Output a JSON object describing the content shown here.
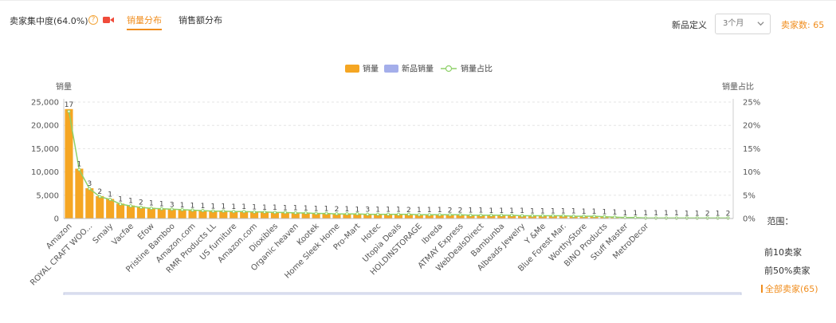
{
  "header": {
    "concentration_label": "卖家集中度(64.0%)",
    "help_icon": "question-circle-icon",
    "video_icon": "video-camera-icon",
    "tabs": [
      {
        "label": "销量分布",
        "active": true
      },
      {
        "label": "销售额分布",
        "active": false
      }
    ],
    "new_def_label": "新品定义",
    "select_value": "3个月",
    "seller_count": "卖家数: 65"
  },
  "colors": {
    "accent": "#f08d1d",
    "bar": "#f5a623",
    "new_bar": "#a4aeea",
    "line": "#8fd16a"
  },
  "range": {
    "title": "范围：",
    "options": [
      "前10卖家",
      "前50%卖家",
      "全部卖家(65)"
    ],
    "selected": "全部卖家(65)"
  },
  "chart_data": {
    "type": "bar",
    "legend": [
      "销量",
      "新品销量",
      "销量占比"
    ],
    "legend_position": "top-center",
    "ylabel_left": "销量",
    "ylabel_right": "销量占比",
    "y_ticks": [
      "0",
      "5,000",
      "10,000",
      "15,000",
      "20,000",
      "25,000"
    ],
    "y2_ticks": [
      "0%",
      "5%",
      "10%",
      "15%",
      "20%",
      "25%"
    ],
    "ylim": [
      0,
      25000
    ],
    "y2lim": [
      0,
      25
    ],
    "grid": true,
    "shown_x_labels": [
      "Amazon",
      "ROYAL CRAFT WOO...",
      "Smaly",
      "Vacfae",
      "Efow",
      "Pristine Bamboo",
      "Amazon.com",
      "RMR Products LL",
      "US furniture",
      "Amazon.com",
      "Dioxibles",
      "Organic heaven",
      "Kootek",
      "Home Sleek Home",
      "Pro-Mart",
      "Hotec",
      "Utopia Deals",
      "HOLDINSTORAGE",
      "Ibreda",
      "ATMAY Express",
      "WebDealsDirect",
      "Bambunba",
      "Albeads Jewelry",
      "Y &Me",
      "Blue Forest Mar.",
      "WorthyStore",
      "BINO Products",
      "Stuff Master",
      "MetroDecor"
    ],
    "label_every": 2,
    "values": [
      23500,
      10700,
      6500,
      4800,
      4200,
      3200,
      2800,
      2500,
      2300,
      2100,
      2000,
      1900,
      1800,
      1750,
      1650,
      1600,
      1550,
      1500,
      1450,
      1400,
      1350,
      1300,
      1250,
      1200,
      1150,
      1100,
      1050,
      1000,
      980,
      960,
      940,
      920,
      900,
      880,
      860,
      840,
      820,
      800,
      780,
      760,
      740,
      720,
      700,
      680,
      660,
      640,
      620,
      600,
      580,
      560,
      540,
      500,
      400,
      300,
      200,
      160,
      150,
      145,
      140,
      130,
      120,
      110,
      100,
      90,
      80
    ],
    "new_values": [
      17,
      1,
      3,
      2,
      1,
      1,
      1,
      2,
      1,
      1,
      3,
      1,
      1,
      1,
      1,
      1,
      1,
      1,
      1,
      1,
      1,
      1,
      1,
      1,
      1,
      1,
      2,
      1,
      1,
      3,
      1,
      1,
      1,
      2,
      1,
      1,
      1,
      2,
      2,
      1,
      1,
      1,
      1,
      1,
      1,
      1,
      1,
      1,
      1,
      1,
      1,
      1,
      1,
      1,
      1,
      1,
      1,
      1,
      1,
      1,
      1,
      1,
      2,
      1,
      2
    ],
    "share_pct": [
      23.0,
      10.5,
      6.4,
      4.7,
      4.1,
      3.1,
      2.7,
      2.4,
      2.2,
      2.1,
      2.0,
      1.9,
      1.8,
      1.7,
      1.6,
      1.6,
      1.5,
      1.5,
      1.4,
      1.4,
      1.3,
      1.3,
      1.2,
      1.2,
      1.1,
      1.1,
      1.0,
      1.0,
      1.0,
      0.9,
      0.9,
      0.9,
      0.9,
      0.9,
      0.8,
      0.8,
      0.8,
      0.8,
      0.8,
      0.7,
      0.7,
      0.7,
      0.7,
      0.7,
      0.6,
      0.6,
      0.6,
      0.6,
      0.6,
      0.5,
      0.5,
      0.5,
      0.4,
      0.3,
      0.2,
      0.2,
      0.1,
      0.1,
      0.1,
      0.1,
      0.1,
      0.1,
      0.1,
      0.1,
      0.1
    ]
  }
}
